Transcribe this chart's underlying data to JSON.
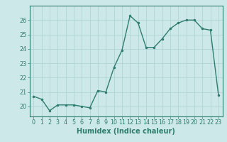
{
  "x": [
    0,
    1,
    2,
    3,
    4,
    5,
    6,
    7,
    8,
    9,
    10,
    11,
    12,
    13,
    14,
    15,
    16,
    17,
    18,
    19,
    20,
    21,
    22,
    23
  ],
  "y": [
    20.7,
    20.5,
    19.7,
    20.1,
    20.1,
    20.1,
    20.0,
    19.9,
    21.1,
    21.0,
    22.7,
    23.9,
    26.3,
    25.8,
    24.1,
    24.1,
    24.7,
    25.4,
    25.8,
    26.0,
    26.0,
    25.4,
    25.3,
    20.8
  ],
  "line_color": "#2e7d6e",
  "marker_color": "#2e7d6e",
  "bg_color": "#cce8e8",
  "grid_color_major": "#b0d4d4",
  "grid_color_minor": "#c4e0e0",
  "xlabel": "Humidex (Indice chaleur)",
  "xlim": [
    -0.5,
    23.5
  ],
  "ylim": [
    19.3,
    27.0
  ],
  "yticks": [
    20,
    21,
    22,
    23,
    24,
    25,
    26
  ],
  "xticks": [
    0,
    1,
    2,
    3,
    4,
    5,
    6,
    7,
    8,
    9,
    10,
    11,
    12,
    13,
    14,
    15,
    16,
    17,
    18,
    19,
    20,
    21,
    22,
    23
  ],
  "tick_label_fontsize": 5.8,
  "xlabel_fontsize": 7.0,
  "line_width": 1.0,
  "marker_size": 2.2
}
